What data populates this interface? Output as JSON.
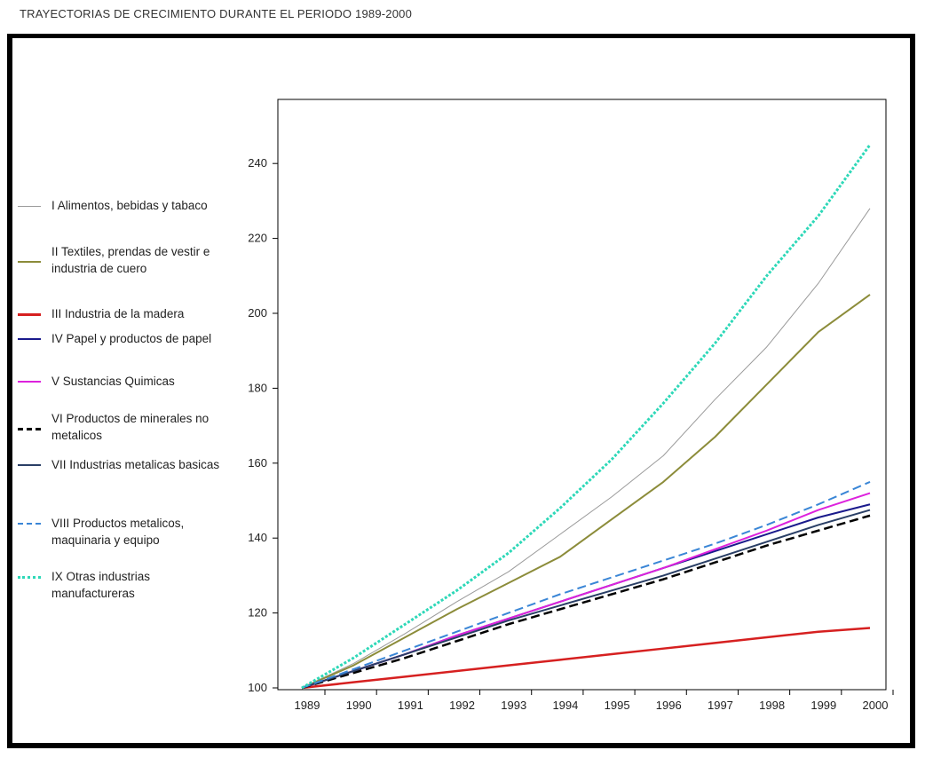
{
  "header": {
    "title": "TRAYECTORIAS DE CRECIMIENTO DURANTE EL PERIODO 1989-2000"
  },
  "chart_data": {
    "type": "line",
    "title": "TRAYECTORIAS DE CRECIMIENTO DURANTE EL PERIODO 1989-2000",
    "xlabel": "",
    "ylabel": "",
    "x": [
      1989,
      1990,
      1991,
      1992,
      1993,
      1994,
      1995,
      1996,
      1997,
      1998,
      1999,
      2000
    ],
    "x_tick_labels": [
      "1989",
      "1990",
      "1991",
      "1992",
      "1993",
      "1994",
      "1995",
      "1996",
      "1997",
      "1998",
      "1999",
      "2000"
    ],
    "y_ticks": [
      100,
      120,
      140,
      160,
      180,
      200,
      220,
      240
    ],
    "y_tick_labels": [
      "100",
      "120",
      "140",
      "160",
      "180",
      "200",
      "220",
      "240"
    ],
    "xlim": [
      1989,
      2000
    ],
    "ylim": [
      100,
      250
    ],
    "grid": false,
    "legend_position": "left",
    "series": [
      {
        "name": "I Alimentos, bebidas y tabaco",
        "color": "#9a9a9a",
        "style": "solid",
        "width": 1,
        "values": [
          100,
          106.5,
          114.5,
          123,
          131,
          141,
          151,
          162,
          177,
          191,
          208,
          228
        ]
      },
      {
        "name": "II Textiles, prendas de vestir e industria de cuero",
        "color": "#8c8c3a",
        "style": "solid",
        "width": 2,
        "values": [
          100,
          106,
          113.5,
          121,
          128,
          135,
          145,
          155,
          167,
          181,
          195,
          205
        ]
      },
      {
        "name": "III Industria de la madera",
        "color": "#d62020",
        "style": "solid",
        "width": 2.5,
        "values": [
          100,
          101.5,
          103,
          104.5,
          106,
          107.5,
          109,
          110.5,
          112,
          113.5,
          115,
          116
        ]
      },
      {
        "name": "IV Papel y productos de papel",
        "color": "#1a1a8c",
        "style": "solid",
        "width": 2,
        "values": [
          100,
          104.5,
          109,
          114,
          118.5,
          123,
          127.5,
          132,
          136.5,
          141,
          145.5,
          149
        ]
      },
      {
        "name": "V Sustancias Quimicas",
        "color": "#dd22dd",
        "style": "solid",
        "width": 2,
        "values": [
          100,
          104.5,
          109,
          114,
          118.5,
          123,
          127.5,
          132,
          137,
          142,
          147.5,
          152
        ]
      },
      {
        "name": "VI Productos de minerales no metalicos",
        "color": "#000000",
        "style": "dashed",
        "width": 2.5,
        "values": [
          100,
          104,
          108,
          112.5,
          117,
          121,
          125,
          129,
          133.5,
          138,
          142,
          146
        ]
      },
      {
        "name": "VII Industrias metalicas basicas",
        "color": "#2a3f66",
        "style": "solid",
        "width": 2,
        "values": [
          100,
          104.5,
          109,
          113.5,
          118,
          122,
          126,
          130,
          134.5,
          139,
          143.5,
          147.5
        ]
      },
      {
        "name": "VIII Productos metalicos, maquinaria y equipo",
        "color": "#3a86d6",
        "style": "dashed",
        "width": 2,
        "values": [
          100,
          105,
          110,
          115,
          120,
          125,
          129.5,
          134,
          138.5,
          143.5,
          149,
          155
        ]
      },
      {
        "name": "IX Otras industrias manufactureras",
        "color": "#2ed8b8",
        "style": "dotted",
        "width": 3,
        "values": [
          100,
          108,
          117,
          126,
          136,
          148,
          161,
          176,
          192,
          210,
          226,
          245
        ]
      }
    ]
  }
}
